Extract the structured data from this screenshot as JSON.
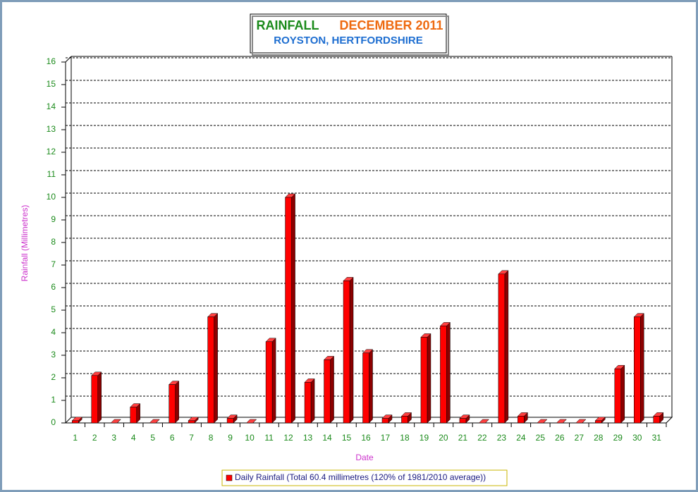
{
  "chart_data": {
    "type": "bar",
    "title": [
      "RAINFALL",
      "DECEMBER 2011"
    ],
    "subtitle": "ROYSTON, HERTFORDSHIRE",
    "y_label": "Rainfall  (Millimetres)",
    "x_label": "Date",
    "categories": [
      "1",
      "2",
      "3",
      "4",
      "5",
      "6",
      "7",
      "8",
      "9",
      "10",
      "11",
      "12",
      "13",
      "14",
      "15",
      "16",
      "17",
      "18",
      "19",
      "20",
      "21",
      "22",
      "23",
      "24",
      "25",
      "26",
      "27",
      "28",
      "29",
      "30",
      "31"
    ],
    "series": [
      {
        "name": "Daily Rainfall (Total 60.4 millimetres (120% of 1981/2010 average))",
        "color": "#ff0000",
        "values": [
          0.1,
          2.1,
          0,
          0.7,
          0,
          1.7,
          0.1,
          4.7,
          0.2,
          0,
          3.6,
          10,
          1.8,
          2.8,
          6.3,
          3.1,
          0.2,
          0.3,
          3.8,
          4.3,
          0.2,
          0,
          6.6,
          0.3,
          0,
          0,
          0,
          0.1,
          2.4,
          4.7,
          0.3
        ]
      }
    ],
    "ylim": [
      0,
      16
    ],
    "yticks": [
      0,
      1,
      2,
      3,
      4,
      5,
      6,
      7,
      8,
      9,
      10,
      11,
      12,
      13,
      14,
      15,
      16
    ],
    "grid": true
  }
}
